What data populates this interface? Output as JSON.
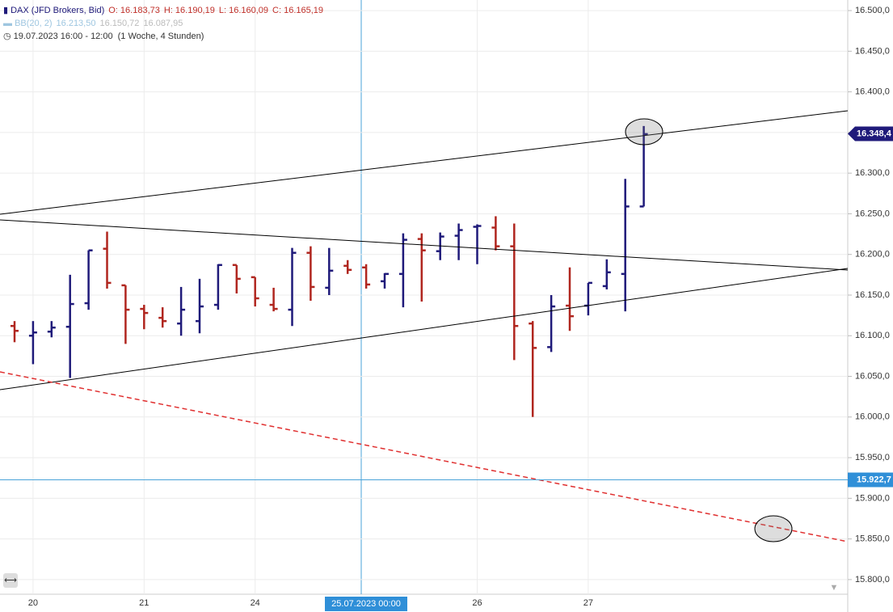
{
  "chart_data": {
    "type": "ohlc",
    "header": {
      "symbol": "DAX (JFD Brokers, Bid)",
      "o": "O: 16.183,73",
      "h": "H: 16.190,19",
      "l": "L: 16.160,09",
      "c": "C: 16.165,19",
      "bb": "BB(20, 2)",
      "bb_values": [
        "16.213,50",
        "16.150,72",
        "16.087,95"
      ],
      "range": "19.07.2023 16:00 - 12:00",
      "period": "(1 Woche, 4 Stunden)"
    },
    "categories": [
      null,
      "20",
      null,
      null,
      null,
      null,
      null,
      "21",
      null,
      null,
      null,
      null,
      null,
      "24",
      null,
      null,
      null,
      null,
      null,
      null,
      null,
      null,
      null,
      null,
      null,
      "26",
      null,
      null,
      null,
      null,
      null,
      "27",
      null,
      null,
      null
    ],
    "series": [
      {
        "name": "DAX",
        "up_color": "#1f1a7a",
        "down_color": "#b0261f",
        "open": [
          16112,
          16100,
          16105,
          16111,
          16140,
          16207,
          16162,
          16133,
          16122,
          16115,
          16118,
          16138,
          16187,
          16172,
          16138,
          16132,
          16202,
          16159,
          16186,
          16184,
          16167,
          16176,
          16219,
          16204,
          16223,
          16234,
          16233,
          16210,
          16115,
          16086,
          16137,
          16137,
          16161,
          16176,
          16259
        ],
        "high": [
          16118,
          16118,
          16118,
          16175,
          16205,
          16228,
          16162,
          16138,
          16135,
          16160,
          16170,
          16188,
          16187,
          16172,
          16159,
          16208,
          16210,
          16208,
          16193,
          16188,
          16177,
          16226,
          16226,
          16227,
          16238,
          16237,
          16247,
          16238,
          16118,
          16150,
          16184,
          16165,
          16194,
          16293,
          16358
        ],
        "low": [
          16092,
          16065,
          16098,
          16048,
          16132,
          16158,
          16090,
          16108,
          16110,
          16100,
          16103,
          16132,
          16152,
          16136,
          16130,
          16112,
          16143,
          16150,
          16176,
          16158,
          16158,
          16135,
          16142,
          16193,
          16193,
          16188,
          16205,
          16070,
          16000,
          16080,
          16106,
          16125,
          16157,
          16130,
          16259
        ],
        "close": [
          16106,
          16104,
          16110,
          16139,
          16205,
          16165,
          16132,
          16128,
          16118,
          16132,
          16136,
          16187,
          16170,
          16146,
          16133,
          16202,
          16160,
          16180,
          16181,
          16163,
          16176,
          16218,
          16205,
          16222,
          16230,
          16235,
          16210,
          16112,
          16085,
          16136,
          16124,
          16165,
          16178,
          16259,
          16348
        ]
      }
    ],
    "ylim": [
      15782,
      16513
    ],
    "yticks": [
      {
        "value": 15800,
        "label": "15.800,0"
      },
      {
        "value": 15850,
        "label": "15.850,0"
      },
      {
        "value": 15900,
        "label": "15.900,0"
      },
      {
        "value": 15950,
        "label": "15.950,0"
      },
      {
        "value": 16000,
        "label": "16.000,0"
      },
      {
        "value": 16050,
        "label": "16.050,0"
      },
      {
        "value": 16100,
        "label": "16.100,0"
      },
      {
        "value": 16150,
        "label": "16.150,0"
      },
      {
        "value": 16200,
        "label": "16.200,0"
      },
      {
        "value": 16250,
        "label": "16.250,0"
      },
      {
        "value": 16300,
        "label": "16.300,0"
      },
      {
        "value": 16350,
        "label": "16.350,0"
      },
      {
        "value": 16400,
        "label": "16.400,0"
      },
      {
        "value": 16450,
        "label": "16.450,0"
      },
      {
        "value": 16500,
        "label": "16.500,0"
      }
    ],
    "last_price": {
      "value": 16348.4,
      "label": "16.348,4"
    },
    "crosshair": {
      "x_label": "25.07.2023 00:00",
      "y": {
        "value": 15922.7,
        "label": "15.922,7"
      }
    },
    "grid": true
  }
}
